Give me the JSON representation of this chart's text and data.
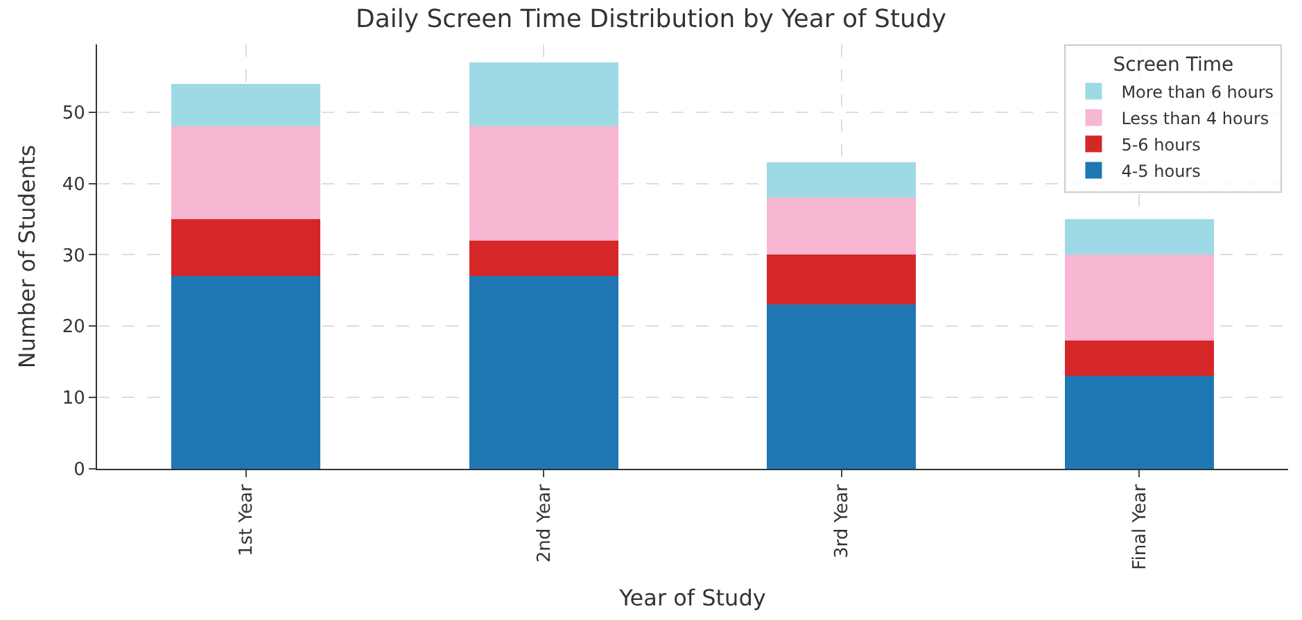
{
  "chart_data": {
    "type": "bar",
    "stacked": true,
    "title": "Daily Screen Time Distribution by Year of Study",
    "xlabel": "Year of Study",
    "ylabel": "Number of Students",
    "legend_title": "Screen Time",
    "categories": [
      "1st Year",
      "2nd Year",
      "3rd Year",
      "Final Year"
    ],
    "series": [
      {
        "name": "4-5 hours",
        "color": "#1f77b4",
        "values": [
          27,
          27,
          23,
          13
        ]
      },
      {
        "name": "5-6 hours",
        "color": "#d62728",
        "values": [
          8,
          5,
          7,
          5
        ]
      },
      {
        "name": "Less than 4 hours",
        "color": "#f7b6d2",
        "values": [
          13,
          16,
          8,
          12
        ]
      },
      {
        "name": "More than 6 hours",
        "color": "#9edae5",
        "values": [
          6,
          9,
          5,
          5
        ]
      }
    ],
    "ylim": [
      0,
      59.5
    ],
    "yticks": [
      0,
      10,
      20,
      30,
      40,
      50
    ],
    "grid": true,
    "legend": "top right"
  }
}
